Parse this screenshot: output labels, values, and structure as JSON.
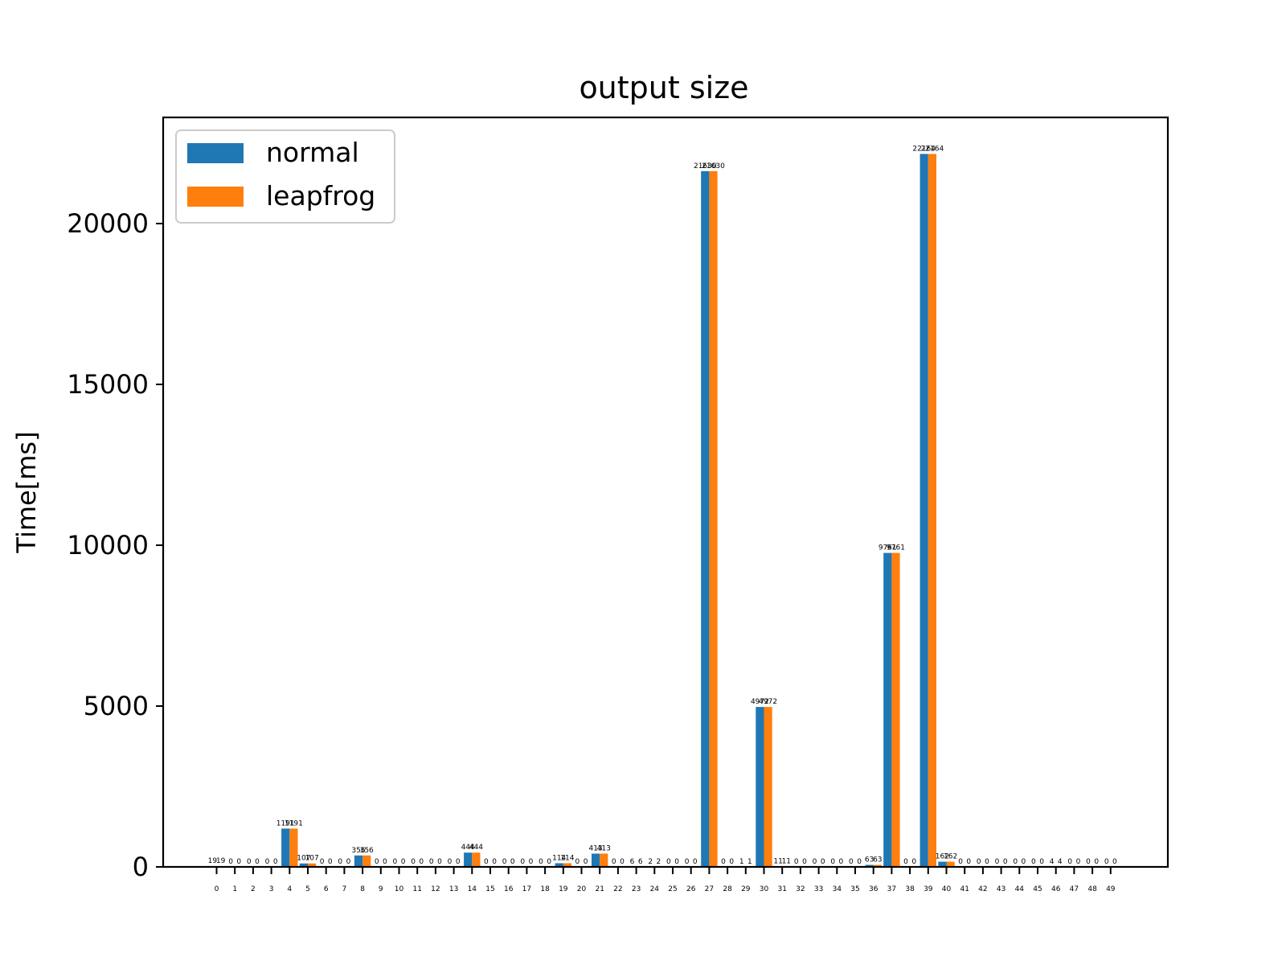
{
  "chart_data": {
    "type": "bar",
    "title": "output size",
    "xlabel": "",
    "ylabel": "Time[ms]",
    "ylim": [
      0,
      23300
    ],
    "yticks": [
      0,
      5000,
      10000,
      15000,
      20000
    ],
    "categories": [
      "0",
      "1",
      "2",
      "3",
      "4",
      "5",
      "6",
      "7",
      "8",
      "9",
      "10",
      "11",
      "12",
      "13",
      "14",
      "15",
      "16",
      "17",
      "18",
      "19",
      "20",
      "21",
      "22",
      "23",
      "24",
      "25",
      "26",
      "27",
      "28",
      "29",
      "30",
      "31",
      "32",
      "33",
      "34",
      "35",
      "36",
      "37",
      "38",
      "39",
      "40",
      "41",
      "42",
      "43",
      "44",
      "45",
      "46",
      "47",
      "48",
      "49"
    ],
    "series": [
      {
        "name": "normal",
        "color": "#1f77b4",
        "values": [
          19,
          0,
          0,
          0,
          1191,
          107,
          0,
          0,
          356,
          0,
          0,
          0,
          0,
          0,
          444,
          0,
          0,
          0,
          0,
          114,
          0,
          413,
          0,
          6,
          2,
          0,
          0,
          21630,
          0,
          1,
          4972,
          11,
          0,
          0,
          0,
          0,
          63,
          9761,
          0,
          22164,
          162,
          0,
          0,
          0,
          0,
          0,
          4,
          0,
          0,
          0
        ]
      },
      {
        "name": "leapfrog",
        "color": "#ff7f0e",
        "values": [
          19,
          0,
          0,
          0,
          1191,
          107,
          0,
          0,
          356,
          0,
          0,
          0,
          0,
          0,
          444,
          0,
          0,
          0,
          0,
          114,
          0,
          413,
          0,
          6,
          2,
          0,
          0,
          21630,
          0,
          1,
          4972,
          11,
          0,
          0,
          0,
          0,
          63,
          9761,
          0,
          22164,
          162,
          0,
          0,
          0,
          0,
          0,
          4,
          0,
          0,
          0
        ]
      }
    ],
    "legend": "top-left",
    "grid": false
  }
}
